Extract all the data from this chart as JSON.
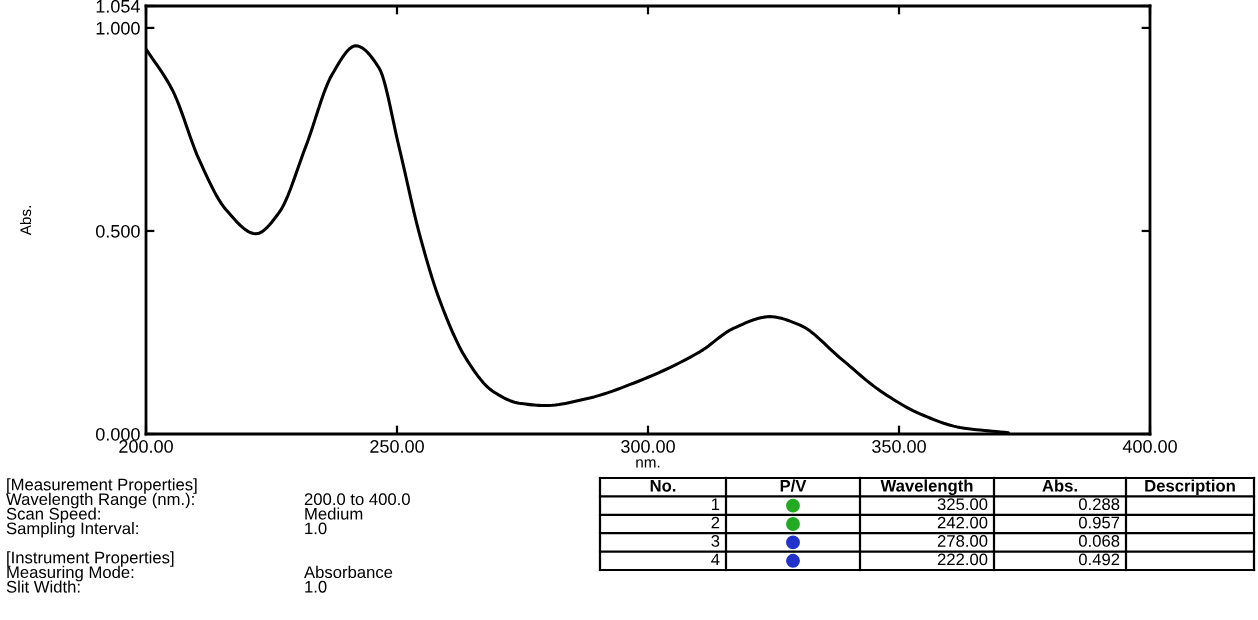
{
  "chart_data": {
    "type": "line",
    "xlabel": "nm.",
    "ylabel": "Abs.",
    "color": "#000000",
    "x": [
      200,
      205.3,
      210.6,
      215.9,
      221.9,
      226.5,
      231.8,
      237.1,
      241.8,
      246.4,
      250.4,
      254.4,
      258.4,
      263.7,
      269.0,
      274.3,
      279.6,
      287.5,
      298.1,
      310.4,
      317.0,
      324.3,
      330.3,
      338.3,
      346.3,
      354.3,
      362.2,
      371.8
    ],
    "values": [
      0.948,
      0.846,
      0.675,
      0.553,
      0.493,
      0.545,
      0.707,
      0.886,
      0.956,
      0.902,
      0.707,
      0.496,
      0.333,
      0.187,
      0.106,
      0.076,
      0.07,
      0.086,
      0.13,
      0.203,
      0.26,
      0.289,
      0.268,
      0.187,
      0.106,
      0.049,
      0.016,
      0.003
    ],
    "xlim": [
      200,
      400
    ],
    "xticks": [
      {
        "value": 200,
        "label": "200.00"
      },
      {
        "value": 250,
        "label": "250.00"
      },
      {
        "value": 300,
        "label": "300.00"
      },
      {
        "value": 350,
        "label": "350.00"
      },
      {
        "value": 400,
        "label": "400.00"
      }
    ],
    "ylim": [
      0,
      1.054
    ],
    "yticks": [
      {
        "value": 0,
        "label": "0.000"
      },
      {
        "value": 0.5,
        "label": "0.500"
      },
      {
        "value": 1.0,
        "label": "1.000"
      },
      {
        "value": 1.054,
        "label": "1.054"
      }
    ],
    "grid": false,
    "annotations": [
      "[Measurement Properties]",
      "Wavelength Range (nm.):\t200.0 to 400.0",
      "Scan Speed:\tMedium",
      "Sampling Interval:\t1.0",
      "[Instrument Properties]",
      "Measuring Mode:\tAbsorbance",
      "Slit Width:\t1.0",
      "No.",
      "P/V",
      "Wavelength",
      "Abs.",
      "Description",
      "1\n325.00\n0.288",
      "2\n242.00\n0.957",
      "3\n278.00\n0.068",
      "4\n222.00\n0.492"
    ]
  }
}
